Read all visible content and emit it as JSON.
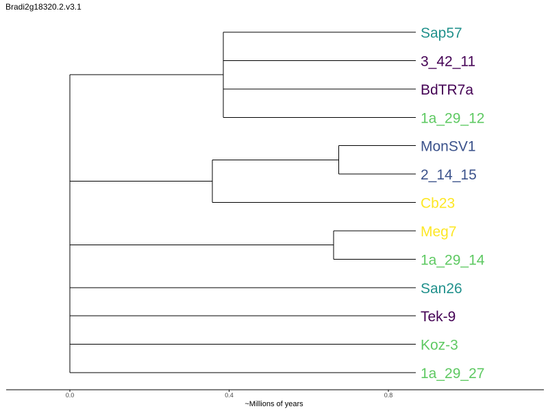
{
  "title": "Bradi2g18320.2.v3.1",
  "tree": {
    "type": "dendrogram",
    "x_axis_label": "~Millions of years",
    "x_ticks": [
      "0.0",
      "0.4",
      "0.8"
    ],
    "x_tick_values": [
      0.0,
      0.4,
      0.8
    ],
    "x_range": [
      0.0,
      0.86
    ],
    "colors": {
      "purple": "#440154",
      "indigo": "#3b528b",
      "teal": "#21918c",
      "green": "#5ec962",
      "yellow": "#fde725"
    },
    "tips": [
      {
        "label": "Sap57",
        "color": "#21918c"
      },
      {
        "label": "3_42_11",
        "color": "#440154"
      },
      {
        "label": "BdTR7a",
        "color": "#440154"
      },
      {
        "label": "1a_29_12",
        "color": "#5ec962"
      },
      {
        "label": "MonSV1",
        "color": "#3b528b"
      },
      {
        "label": "2_14_15",
        "color": "#3b528b"
      },
      {
        "label": "Cb23",
        "color": "#fde725"
      },
      {
        "label": "Meg7",
        "color": "#fde725"
      },
      {
        "label": "1a_29_14",
        "color": "#5ec962"
      },
      {
        "label": "San26",
        "color": "#21918c"
      },
      {
        "label": "Tek-9",
        "color": "#440154"
      },
      {
        "label": "Koz-3",
        "color": "#5ec962"
      },
      {
        "label": "1a_29_27",
        "color": "#5ec962"
      }
    ],
    "nodes": [
      {
        "height": 0.0,
        "children": [
          "clade_A",
          "clade_B",
          "clade_C",
          "San26",
          "Tek-9",
          "Koz-3",
          "1a_29_27"
        ]
      },
      {
        "name": "clade_A",
        "height": 0.385,
        "children": [
          "Sap57",
          "3_42_11",
          "BdTR7a",
          "1a_29_12"
        ]
      },
      {
        "name": "clade_B",
        "height": 0.358,
        "children": [
          "clade_B1",
          "Cb23"
        ]
      },
      {
        "name": "clade_B1",
        "height": 0.675,
        "children": [
          "MonSV1",
          "2_14_15"
        ]
      },
      {
        "name": "clade_C",
        "height": 0.662,
        "children": [
          "Meg7",
          "1a_29_14"
        ]
      }
    ]
  }
}
